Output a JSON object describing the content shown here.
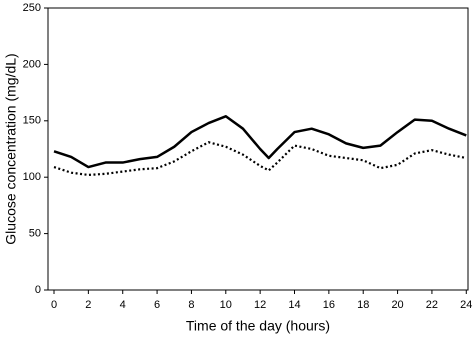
{
  "chart_data": {
    "type": "line",
    "x_label": "Time of the day (hours)",
    "y_label": "Glucose concentration (mg/dL)",
    "x": [
      0,
      1,
      2,
      3,
      4,
      5,
      6,
      7,
      8,
      9,
      10,
      11,
      12,
      12.5,
      13,
      14,
      15,
      16,
      17,
      18,
      19,
      20,
      21,
      22,
      23,
      24
    ],
    "series": [
      {
        "color": "#000000",
        "style": "solid",
        "values": [
          123,
          118,
          109,
          113,
          113,
          116,
          118,
          127,
          140,
          148,
          154,
          143,
          125,
          117,
          125,
          140,
          143,
          138,
          130,
          126,
          128,
          140,
          151,
          150,
          143,
          137
        ]
      },
      {
        "color": "#000000",
        "style": "dotted",
        "values": [
          109,
          104,
          102,
          103,
          105,
          107,
          108,
          114,
          123,
          131,
          127,
          120,
          110,
          106,
          113,
          128,
          125,
          119,
          117,
          115,
          108,
          111,
          121,
          124,
          120,
          117
        ]
      }
    ],
    "xlim": [
      -0.35,
      24.1
    ],
    "xticks": [
      0,
      2,
      4,
      6,
      8,
      10,
      12,
      14,
      16,
      18,
      20,
      22,
      24
    ],
    "ylim": [
      0,
      250
    ],
    "yticks": [
      0,
      50,
      100,
      150,
      200,
      250
    ],
    "grid": false
  }
}
